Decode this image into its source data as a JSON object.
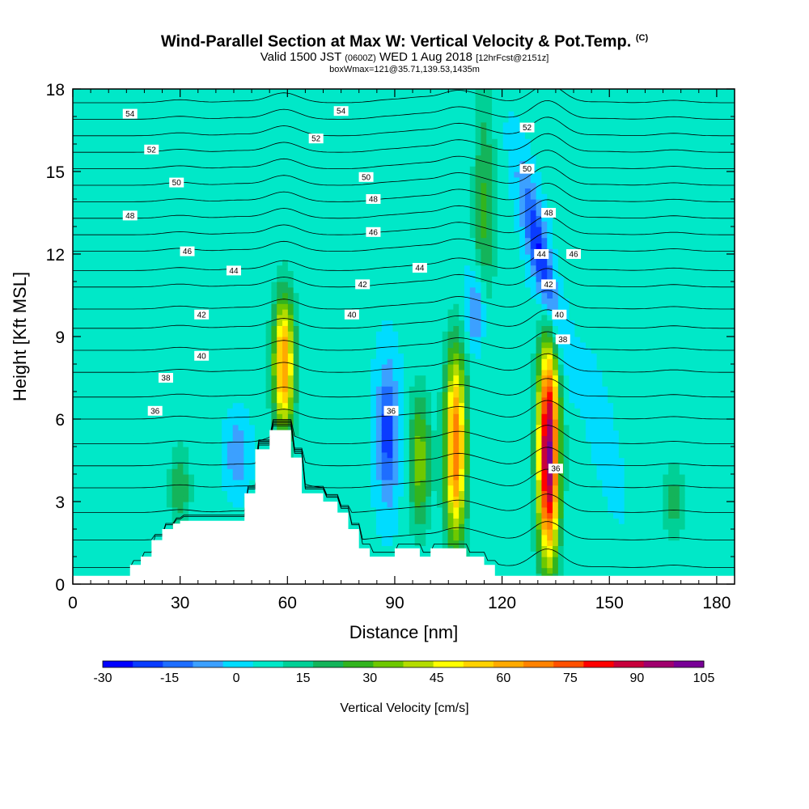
{
  "title": {
    "line1": "Wind-Parallel Section at Max W: Vertical Velocity & Pot.Temp.",
    "line1_tag": "(C)",
    "line2_main": "Valid 1500 JST",
    "line2_utc": "(0600Z)",
    "line2_date": "WED 1 Aug 2018",
    "line2_fcst": "[12hrFcst@2151z]",
    "line3": "boxWmax=121@35.71,139.53,1435m"
  },
  "chart_data": {
    "type": "heatmap",
    "xlabel": "Distance [nm]",
    "ylabel": "Height [Kft MSL]",
    "xlim": [
      0,
      185
    ],
    "ylim": [
      0,
      18
    ],
    "x_ticks": [
      0,
      30,
      60,
      90,
      120,
      150,
      180
    ],
    "y_ticks": [
      0,
      3,
      6,
      9,
      12,
      15,
      18
    ],
    "colorbar": {
      "title": "Vertical Velocity [cm/s]",
      "tick_labels": [
        "-30",
        "-15",
        "0",
        "15",
        "30",
        "45",
        "60",
        "75",
        "90",
        "105"
      ],
      "min": -30,
      "max": 105,
      "colors": [
        "#0000ff",
        "#0a3cff",
        "#1e6eff",
        "#3ca0ff",
        "#00dcff",
        "#00e8c8",
        "#00d096",
        "#14b45a",
        "#32b41e",
        "#6ec800",
        "#b4dc00",
        "#ffff00",
        "#ffd200",
        "#ffaa00",
        "#ff8200",
        "#ff5000",
        "#ff0000",
        "#c8003c",
        "#a0006e",
        "#780096"
      ]
    },
    "background_value": 5,
    "features": [
      {
        "kind": "updraft",
        "x": 59,
        "y_base": 5.5,
        "y_top": 10.5,
        "peak": 60
      },
      {
        "kind": "updraft",
        "x": 107,
        "y_base": 1.5,
        "y_top": 8.5,
        "peak": 65
      },
      {
        "kind": "updraft",
        "x": 133,
        "y_base": 0.8,
        "y_top": 8.8,
        "peak": 95
      },
      {
        "kind": "updraft",
        "x": 97,
        "y_base": 2,
        "y_top": 7,
        "peak": 30
      },
      {
        "kind": "updraft",
        "x": 30,
        "y_base": 2,
        "y_top": 5,
        "peak": 18
      },
      {
        "kind": "updraft",
        "x": 168,
        "y_base": 1.5,
        "y_top": 4.5,
        "peak": 15
      },
      {
        "kind": "updraft",
        "x": 115,
        "y_base": 9,
        "y_top": 18,
        "peak": 20
      },
      {
        "kind": "downdraft",
        "x": 88,
        "y_base": 3,
        "y_top": 8,
        "peak": -25
      },
      {
        "kind": "downdraft",
        "x": 46,
        "y_base": 3.5,
        "y_top": 6,
        "peak": -15
      },
      {
        "kind": "downdraft",
        "x": 131,
        "y_base": 8.5,
        "y_top": 15,
        "peak": -30
      },
      {
        "kind": "downdraft",
        "x": 113,
        "y_base": 8.5,
        "y_top": 11.5,
        "peak": -20
      },
      {
        "kind": "downdraft",
        "x": 148,
        "y_base": 3,
        "y_top": 8,
        "peak": -8
      }
    ],
    "terrain": {
      "x": [
        0,
        16,
        16,
        19,
        19,
        22,
        22,
        25,
        25,
        28,
        28,
        30,
        30,
        48,
        48,
        51,
        51,
        55,
        55,
        58,
        58,
        61,
        61,
        64,
        64,
        70,
        70,
        74,
        74,
        77,
        77,
        80,
        80,
        83,
        83,
        86,
        86,
        90,
        90,
        97,
        97,
        100,
        100,
        103,
        103,
        110,
        110,
        115,
        115,
        118,
        118,
        122,
        122,
        185
      ],
      "height_kft": [
        0.3,
        0.3,
        0.7,
        0.7,
        1.0,
        1.0,
        1.6,
        1.6,
        2.0,
        2.0,
        2.2,
        2.2,
        2.3,
        2.3,
        3.3,
        3.3,
        4.9,
        4.9,
        5.6,
        5.6,
        5.6,
        5.6,
        4.6,
        4.6,
        3.3,
        3.3,
        3.0,
        3.0,
        2.6,
        2.6,
        2.0,
        2.0,
        1.3,
        1.3,
        1.0,
        1.0,
        1.0,
        1.0,
        1.3,
        1.3,
        1.0,
        1.0,
        1.3,
        1.3,
        1.3,
        1.3,
        1.0,
        1.0,
        0.7,
        0.7,
        0.3,
        0.3,
        0.3,
        0.3
      ]
    },
    "isentropes": [
      {
        "theta": 32,
        "base_kft": 0.6
      },
      {
        "theta": 33,
        "base_kft": 1.6
      },
      {
        "theta": 34,
        "base_kft": 2.6
      },
      {
        "theta": 35,
        "base_kft": 3.5
      },
      {
        "theta": 36,
        "base_kft": 4.3
      },
      {
        "theta": 37,
        "base_kft": 5.1
      },
      {
        "theta": 38,
        "base_kft": 6.0
      },
      {
        "theta": 39,
        "base_kft": 6.8
      },
      {
        "theta": 40,
        "base_kft": 7.7
      },
      {
        "theta": 41,
        "base_kft": 8.5
      },
      {
        "theta": 42,
        "base_kft": 9.3
      },
      {
        "theta": 43,
        "base_kft": 10.0
      },
      {
        "theta": 44,
        "base_kft": 10.8
      },
      {
        "theta": 45,
        "base_kft": 11.4
      },
      {
        "theta": 46,
        "base_kft": 12.1
      },
      {
        "theta": 47,
        "base_kft": 12.7
      },
      {
        "theta": 48,
        "base_kft": 13.3
      },
      {
        "theta": 49,
        "base_kft": 13.9
      },
      {
        "theta": 50,
        "base_kft": 14.5
      },
      {
        "theta": 51,
        "base_kft": 15.1
      },
      {
        "theta": 52,
        "base_kft": 15.7
      },
      {
        "theta": 53,
        "base_kft": 16.3
      },
      {
        "theta": 54,
        "base_kft": 16.9
      },
      {
        "theta": 55,
        "base_kft": 17.5
      }
    ],
    "isentrope_labels": [
      {
        "text": "54",
        "x": 16,
        "y": 17.1
      },
      {
        "text": "54",
        "x": 75,
        "y": 17.2
      },
      {
        "text": "52",
        "x": 22,
        "y": 15.8
      },
      {
        "text": "52",
        "x": 68,
        "y": 16.2
      },
      {
        "text": "52",
        "x": 127,
        "y": 16.6
      },
      {
        "text": "50",
        "x": 29,
        "y": 14.6
      },
      {
        "text": "50",
        "x": 82,
        "y": 14.8
      },
      {
        "text": "50",
        "x": 127,
        "y": 15.1
      },
      {
        "text": "48",
        "x": 16,
        "y": 13.4
      },
      {
        "text": "48",
        "x": 84,
        "y": 14.0
      },
      {
        "text": "48",
        "x": 133,
        "y": 13.5
      },
      {
        "text": "46",
        "x": 32,
        "y": 12.1
      },
      {
        "text": "46",
        "x": 84,
        "y": 12.8
      },
      {
        "text": "46",
        "x": 140,
        "y": 12.0
      },
      {
        "text": "44",
        "x": 45,
        "y": 11.4
      },
      {
        "text": "44",
        "x": 97,
        "y": 11.5
      },
      {
        "text": "44",
        "x": 131,
        "y": 12.0
      },
      {
        "text": "42",
        "x": 36,
        "y": 9.8
      },
      {
        "text": "42",
        "x": 81,
        "y": 10.9
      },
      {
        "text": "42",
        "x": 133,
        "y": 10.9
      },
      {
        "text": "40",
        "x": 36,
        "y": 8.3
      },
      {
        "text": "40",
        "x": 78,
        "y": 9.8
      },
      {
        "text": "40",
        "x": 136,
        "y": 9.8
      },
      {
        "text": "38",
        "x": 26,
        "y": 7.5
      },
      {
        "text": "38",
        "x": 137,
        "y": 8.9
      },
      {
        "text": "36",
        "x": 23,
        "y": 6.3
      },
      {
        "text": "36",
        "x": 89,
        "y": 6.3
      },
      {
        "text": "36",
        "x": 135,
        "y": 4.2
      }
    ]
  }
}
